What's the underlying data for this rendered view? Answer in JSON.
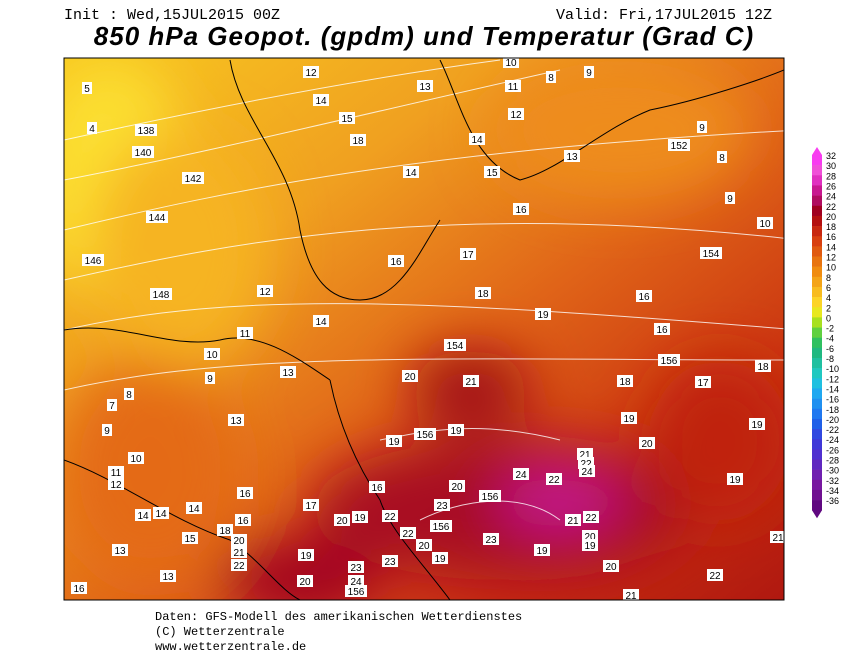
{
  "header": {
    "init": "Init : Wed,15JUL2015 00Z",
    "valid": "Valid: Fri,17JUL2015 12Z",
    "title": "850 hPa Geopot. (gpdm) und Temperatur (Grad C)"
  },
  "map": {
    "contour_labels": [
      "12",
      "13",
      "10",
      "11",
      "8",
      "9",
      "5",
      "14",
      "4",
      "138",
      "15",
      "12",
      "9",
      "140",
      "18",
      "14",
      "13",
      "152",
      "8",
      "142",
      "14",
      "15",
      "9",
      "144",
      "16",
      "10",
      "146",
      "16",
      "17",
      "154",
      "148",
      "12",
      "18",
      "16",
      "14",
      "19",
      "16",
      "11",
      "10",
      "154",
      "156",
      "18",
      "13",
      "9",
      "20",
      "21",
      "18",
      "17",
      "8",
      "7",
      "13",
      "19",
      "19",
      "9",
      "156",
      "19",
      "19",
      "20",
      "10",
      "21",
      "22",
      "24",
      "11",
      "12",
      "24",
      "22",
      "19",
      "16",
      "16",
      "20",
      "156",
      "23",
      "17",
      "14",
      "14",
      "14",
      "16",
      "20",
      "19",
      "22",
      "156",
      "21",
      "22",
      "18",
      "22",
      "23",
      "20",
      "15",
      "13",
      "20",
      "21",
      "22",
      "20",
      "19",
      "19",
      "19",
      "23",
      "19",
      "21",
      "23",
      "20",
      "13",
      "20",
      "24",
      "156",
      "22",
      "16",
      "21"
    ]
  },
  "colorbar": {
    "labels": [
      32,
      30,
      28,
      26,
      24,
      22,
      20,
      18,
      16,
      14,
      12,
      10,
      8,
      6,
      4,
      2,
      0,
      -2,
      -4,
      -6,
      -8,
      -10,
      -12,
      -14,
      -16,
      -18,
      -20,
      -22,
      -24,
      -26,
      -28,
      -30,
      -32,
      -34,
      -36
    ],
    "colors": [
      "#f83cf0",
      "#f050d8",
      "#e030c0",
      "#c81890",
      "#b00c60",
      "#a00020",
      "#b41010",
      "#c82810",
      "#d84010",
      "#e05a10",
      "#e87410",
      "#f08c10",
      "#f4a418",
      "#f8bc20",
      "#fcd428",
      "#e8e820",
      "#a8e020",
      "#60d040",
      "#30c060",
      "#20b880",
      "#20c0a0",
      "#20c8c0",
      "#20c0e0",
      "#20a8f0",
      "#2090f0",
      "#2078f0",
      "#2060e8",
      "#3048e0",
      "#4038d8",
      "#5030d0",
      "#6028c0",
      "#7020b0",
      "#7818a0",
      "#701090",
      "#600880"
    ]
  },
  "footer": {
    "source": "Daten: GFS-Modell des amerikanischen Wetterdienstes",
    "copyright": "(C) Wetterzentrale",
    "url": "www.wetterzentrale.de"
  }
}
